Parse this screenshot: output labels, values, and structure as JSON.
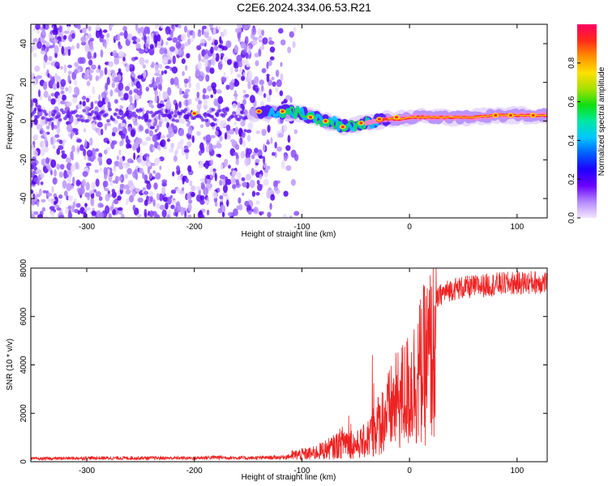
{
  "title": "C2E6.2024.334.06.53.R21",
  "chart_data": [
    {
      "type": "heatmap",
      "xlabel": "Height of straight line (km)",
      "ylabel": "Frequency (Hz)",
      "xlim": [
        -352,
        128
      ],
      "ylim": [
        -50,
        50
      ],
      "xticks": [
        -300,
        -200,
        -100,
        0,
        100
      ],
      "yticks": [
        -40,
        -20,
        0,
        20,
        40
      ],
      "colorbar": {
        "label": "Normalized spectral amplitude",
        "range": [
          0,
          1
        ],
        "ticks": [
          "0.0",
          "0.2",
          "0.4",
          "0.6",
          "0.8"
        ],
        "colors": [
          "#f4e6ff",
          "#b388ff",
          "#6a00ff",
          "#1e00ff",
          "#0060ff",
          "#00c8ff",
          "#00e8a0",
          "#10e010",
          "#a8e000",
          "#ffe000",
          "#ff9000",
          "#ff2a1a",
          "#ff0060"
        ]
      },
      "ridge": {
        "x": [
          -200,
          -140,
          -120,
          -100,
          -90,
          -80,
          -70,
          -60,
          -50,
          -40,
          -30,
          -20,
          -10,
          0,
          20,
          40,
          60,
          80,
          100,
          128
        ],
        "frequency": [
          3,
          4,
          5,
          4,
          2,
          0,
          -1,
          -3,
          -2,
          -1,
          0,
          1,
          1,
          2,
          2,
          2,
          2,
          3,
          3,
          3
        ]
      }
    },
    {
      "type": "line",
      "xlabel": "Height of straight line (km)",
      "ylabel": "SNR (10 * v/v)",
      "xlim": [
        -352,
        128
      ],
      "ylim": [
        0,
        8000
      ],
      "xticks": [
        -300,
        -200,
        -100,
        0,
        100
      ],
      "yticks": [
        0,
        2000,
        4000,
        6000,
        8000
      ],
      "color": "#ee2222",
      "envelope": {
        "x": [
          -352,
          -300,
          -250,
          -200,
          -180,
          -150,
          -120,
          -100,
          -90,
          -80,
          -70,
          -60,
          -50,
          -40,
          -30,
          -20,
          -10,
          0,
          10,
          20,
          30,
          40,
          60,
          80,
          100,
          128
        ],
        "y": [
          200,
          250,
          250,
          250,
          300,
          250,
          300,
          450,
          500,
          700,
          900,
          1300,
          1000,
          1300,
          2200,
          3000,
          3800,
          4400,
          5500,
          6600,
          7200,
          7400,
          7500,
          7600,
          7650,
          7700
        ]
      }
    }
  ]
}
